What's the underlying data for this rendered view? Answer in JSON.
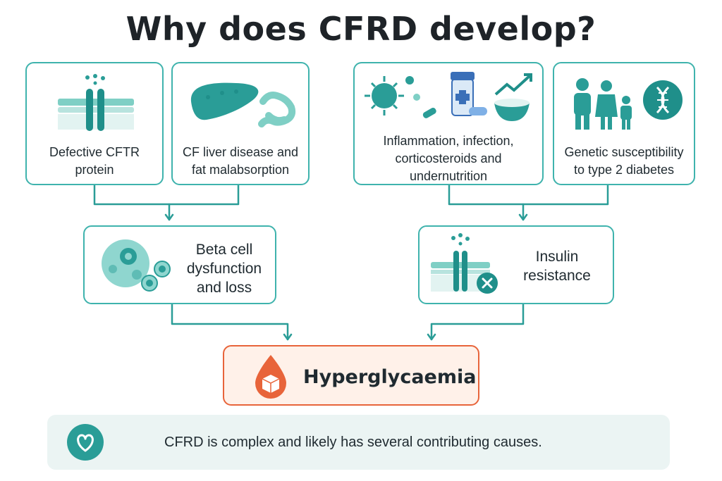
{
  "title": "Why does CFRD develop?",
  "causes": [
    {
      "label": "Defective CFTR\nprotein",
      "icon": "cell-membrane-channel-icon"
    },
    {
      "label": "CF liver disease and\nfat malabsorption",
      "icon": "liver-intestine-icon"
    },
    {
      "label": "Inflammation, infection,\ncorticosteroids and\nundernutrition",
      "icon": "infection-medication-nutrition-icon"
    },
    {
      "label": "Genetic susceptibility\nto type 2 diabetes",
      "icon": "family-dna-icon"
    }
  ],
  "mechanisms": [
    {
      "label": "Beta cell\ndysfunction\nand loss",
      "icon": "beta-cells-icon"
    },
    {
      "label": "Insulin\nresistance",
      "icon": "insulin-receptor-blocked-icon"
    }
  ],
  "outcome": {
    "label": "Hyperglycaemia",
    "icon": "glucose-drop-icon"
  },
  "note": {
    "label": "CFRD is complex and likely has several contributing causes.",
    "icon": "heart-icon"
  },
  "colors": {
    "teal": "#3fb3ad",
    "dark_teal": "#1f8f8a",
    "orange": "#e8643a",
    "note_bg": "#ebf4f3"
  }
}
